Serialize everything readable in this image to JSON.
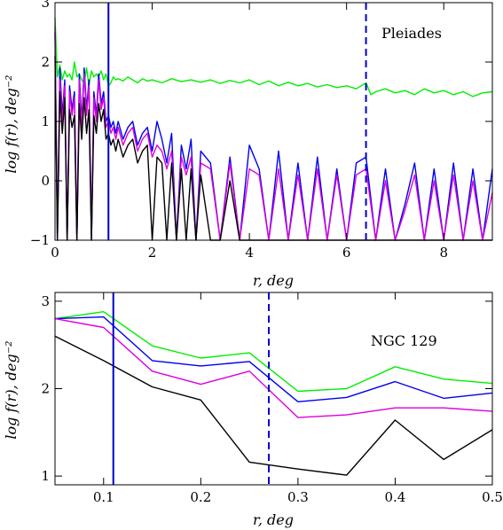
{
  "chart_data": [
    {
      "type": "line",
      "annotation": "Pleiades",
      "xlabel": "r,  deg",
      "ylabel": "log f(r),  deg⁻²",
      "xlim": [
        0,
        9
      ],
      "ylim": [
        -1,
        3
      ],
      "xticks": [
        0,
        2,
        4,
        6,
        8
      ],
      "yticks": [
        -1,
        0,
        1,
        2,
        3
      ],
      "xtick_labels": [
        "0",
        "2",
        "4",
        "6",
        "8"
      ],
      "ytick_labels": [
        "−1",
        "0",
        "1",
        "2",
        "3"
      ],
      "vlines": [
        {
          "x": 1.1,
          "style": "solid",
          "color": "#0000cc"
        },
        {
          "x": 6.4,
          "style": "dashed",
          "color": "#0000cc"
        }
      ],
      "series": [
        {
          "color": "#00ee00",
          "x": [
            0.0,
            0.05,
            0.1,
            0.15,
            0.2,
            0.25,
            0.3,
            0.35,
            0.4,
            0.45,
            0.5,
            0.55,
            0.6,
            0.65,
            0.7,
            0.75,
            0.8,
            0.85,
            0.9,
            0.95,
            1.0,
            1.05,
            1.1,
            1.15,
            1.2,
            1.25,
            1.3,
            1.4,
            1.5,
            1.6,
            1.7,
            1.8,
            1.9,
            2.0,
            2.2,
            2.4,
            2.6,
            2.8,
            3.0,
            3.2,
            3.4,
            3.6,
            3.8,
            4.0,
            4.2,
            4.4,
            4.6,
            4.8,
            5.0,
            5.2,
            5.4,
            5.6,
            5.8,
            6.0,
            6.2,
            6.4,
            6.5,
            6.6,
            6.8,
            7.0,
            7.2,
            7.4,
            7.6,
            7.8,
            8.0,
            8.2,
            8.4,
            8.6,
            8.8,
            9.0
          ],
          "values": [
            2.75,
            1.75,
            1.95,
            1.7,
            1.85,
            1.75,
            1.8,
            1.7,
            2.0,
            1.75,
            1.8,
            1.7,
            1.65,
            1.9,
            1.6,
            1.85,
            1.75,
            1.8,
            1.75,
            1.85,
            1.7,
            1.8,
            1.6,
            1.65,
            1.75,
            1.7,
            1.72,
            1.68,
            1.75,
            1.7,
            1.65,
            1.72,
            1.68,
            1.7,
            1.65,
            1.72,
            1.67,
            1.7,
            1.66,
            1.7,
            1.64,
            1.69,
            1.65,
            1.7,
            1.62,
            1.68,
            1.6,
            1.66,
            1.6,
            1.64,
            1.58,
            1.62,
            1.57,
            1.6,
            1.55,
            1.65,
            1.45,
            1.5,
            1.55,
            1.48,
            1.52,
            1.45,
            1.55,
            1.48,
            1.52,
            1.45,
            1.5,
            1.42,
            1.48,
            1.5
          ]
        },
        {
          "color": "#0000ee",
          "x": [
            0.0,
            0.05,
            0.1,
            0.15,
            0.2,
            0.25,
            0.3,
            0.35,
            0.4,
            0.45,
            0.5,
            0.55,
            0.6,
            0.65,
            0.7,
            0.75,
            0.8,
            0.85,
            0.9,
            0.95,
            1.0,
            1.05,
            1.1,
            1.15,
            1.2,
            1.25,
            1.3,
            1.4,
            1.5,
            1.6,
            1.7,
            1.8,
            1.9,
            2.0,
            2.1,
            2.2,
            2.3,
            2.4,
            2.5,
            2.6,
            2.7,
            2.8,
            2.9,
            3.0,
            3.2,
            3.4,
            3.6,
            3.8,
            4.0,
            4.2,
            4.4,
            4.6,
            4.8,
            5.0,
            5.2,
            5.4,
            5.6,
            5.8,
            6.0,
            6.2,
            6.4,
            6.6,
            6.8,
            7.0,
            7.2,
            7.4,
            7.6,
            7.8,
            8.0,
            8.2,
            8.4,
            8.6,
            8.8,
            9.0
          ],
          "values": [
            2.5,
            -1,
            1.9,
            1.1,
            1.7,
            -1,
            1.6,
            1.2,
            1.5,
            -1,
            1.8,
            1.0,
            1.9,
            1.2,
            1.7,
            -1,
            1.5,
            1.1,
            1.8,
            1.3,
            1.5,
            1.0,
            1.1,
            0.9,
            1.0,
            0.8,
            1.0,
            0.7,
            0.9,
            1.0,
            0.6,
            0.8,
            0.9,
            0.5,
            1.0,
            0.7,
            0.3,
            0.8,
            -1,
            0.6,
            0.2,
            0.7,
            -1,
            0.5,
            0.3,
            -1,
            0.4,
            -1,
            0.6,
            0.2,
            -1,
            0.5,
            -1,
            0.3,
            -1,
            0.4,
            -1,
            0.2,
            -1,
            0.3,
            0.4,
            -1,
            0.2,
            -1,
            -0.4,
            0.3,
            -1,
            0.2,
            -1,
            0.3,
            -1,
            0.2,
            -1,
            0.2
          ]
        },
        {
          "color": "#dd00dd",
          "x": [
            0.0,
            0.05,
            0.1,
            0.15,
            0.2,
            0.25,
            0.3,
            0.35,
            0.4,
            0.45,
            0.5,
            0.55,
            0.6,
            0.65,
            0.7,
            0.75,
            0.8,
            0.85,
            0.9,
            0.95,
            1.0,
            1.05,
            1.1,
            1.15,
            1.2,
            1.25,
            1.3,
            1.4,
            1.5,
            1.6,
            1.7,
            1.8,
            1.9,
            2.0,
            2.1,
            2.2,
            2.3,
            2.4,
            2.5,
            2.6,
            2.7,
            2.8,
            2.9,
            3.0,
            3.2,
            3.4,
            3.6,
            3.8,
            4.0,
            4.2,
            4.4,
            4.6,
            4.8,
            5.0,
            5.2,
            5.4,
            5.6,
            5.8,
            6.0,
            6.2,
            6.4,
            6.6,
            6.8,
            7.0,
            7.2,
            7.4,
            7.6,
            7.8,
            8.0,
            8.2,
            8.4,
            8.6,
            8.8,
            9.0
          ],
          "values": [
            2.6,
            -1,
            1.7,
            1.0,
            1.6,
            -1,
            1.5,
            1.1,
            1.4,
            -1,
            1.7,
            0.9,
            1.8,
            1.1,
            1.6,
            -1,
            1.4,
            1.0,
            1.7,
            1.2,
            1.4,
            0.9,
            1.0,
            0.8,
            0.9,
            0.7,
            0.9,
            0.6,
            0.8,
            0.9,
            0.5,
            0.7,
            0.8,
            0.4,
            0.6,
            0.5,
            0.2,
            0.5,
            -1,
            0.4,
            0.1,
            0.4,
            -1,
            0.3,
            0.2,
            -1,
            0.3,
            -1,
            0.2,
            0.1,
            -1,
            0.2,
            -1,
            0.1,
            -1,
            0.2,
            -1,
            0.1,
            -1,
            0.1,
            0.2,
            -1,
            0.0,
            -1,
            -0.5,
            0.1,
            -1,
            0.0,
            -1,
            0.1,
            -1,
            0.0,
            -1,
            -0.2
          ]
        },
        {
          "color": "#000000",
          "x": [
            0.0,
            0.05,
            0.1,
            0.15,
            0.2,
            0.25,
            0.3,
            0.35,
            0.4,
            0.45,
            0.5,
            0.55,
            0.6,
            0.65,
            0.7,
            0.75,
            0.8,
            0.85,
            0.9,
            0.95,
            1.0,
            1.05,
            1.1,
            1.15,
            1.2,
            1.25,
            1.3,
            1.4,
            1.5,
            1.6,
            1.7,
            1.8,
            1.9,
            2.0,
            2.1,
            2.2,
            2.3,
            2.4,
            2.5,
            2.6,
            2.7,
            2.8,
            2.9,
            3.0,
            3.2,
            3.4,
            3.6,
            3.8,
            4.0,
            4.2,
            4.4,
            4.6,
            4.8,
            5.0,
            5.2,
            5.4,
            5.6,
            5.8,
            6.0,
            6.2,
            6.4,
            6.6,
            6.8,
            7.0,
            7.2,
            7.4,
            7.6,
            7.8,
            8.0,
            8.2,
            8.4,
            8.6,
            8.8,
            9.0
          ],
          "values": [
            2.1,
            -1,
            1.5,
            0.8,
            1.4,
            -1,
            1.2,
            0.9,
            1.1,
            -1,
            1.3,
            0.7,
            1.4,
            0.8,
            1.2,
            -1,
            1.1,
            0.8,
            1.3,
            1.0,
            1.2,
            0.7,
            0.8,
            0.6,
            0.7,
            0.5,
            0.7,
            0.4,
            0.6,
            0.7,
            0.3,
            0.5,
            0.6,
            -1,
            0.4,
            0.3,
            -1,
            0.3,
            -1,
            0.2,
            -1,
            0.2,
            -1,
            0.1,
            -1,
            -1,
            0.0,
            -1,
            -1,
            -1,
            -1,
            -1,
            -1,
            -1,
            -1,
            -1,
            -1,
            -1,
            -1,
            -1,
            -1,
            -1,
            -1,
            -1,
            -1,
            -1,
            -1,
            -1,
            -1,
            -1,
            -1,
            -1,
            -1,
            -1
          ]
        }
      ]
    },
    {
      "type": "line",
      "annotation": "NGC 129",
      "xlabel": "r,  deg",
      "ylabel": "log f(r),  deg⁻²",
      "xlim": [
        0.05,
        0.5
      ],
      "ylim": [
        0.9,
        3.1
      ],
      "xticks": [
        0.1,
        0.2,
        0.3,
        0.4,
        0.5
      ],
      "yticks": [
        1,
        2,
        3
      ],
      "xtick_labels": [
        "0.1",
        "0.2",
        "0.3",
        "0.4",
        "0.5"
      ],
      "ytick_labels": [
        "1",
        "2",
        "3"
      ],
      "vlines": [
        {
          "x": 0.11,
          "style": "solid",
          "color": "#0000cc"
        },
        {
          "x": 0.27,
          "style": "dashed",
          "color": "#0000cc"
        }
      ],
      "series": [
        {
          "color": "#00ee00",
          "x": [
            0.05,
            0.1,
            0.15,
            0.2,
            0.25,
            0.3,
            0.35,
            0.4,
            0.45,
            0.5
          ],
          "values": [
            2.8,
            2.88,
            2.49,
            2.35,
            2.41,
            1.97,
            2.0,
            2.25,
            2.11,
            2.06
          ]
        },
        {
          "color": "#0000ee",
          "x": [
            0.05,
            0.1,
            0.15,
            0.2,
            0.25,
            0.3,
            0.35,
            0.4,
            0.45,
            0.5
          ],
          "values": [
            2.8,
            2.82,
            2.32,
            2.26,
            2.31,
            1.85,
            1.9,
            2.08,
            1.89,
            1.95
          ]
        },
        {
          "color": "#dd00dd",
          "x": [
            0.05,
            0.1,
            0.15,
            0.2,
            0.25,
            0.3,
            0.35,
            0.4,
            0.45,
            0.5
          ],
          "values": [
            2.8,
            2.7,
            2.2,
            2.05,
            2.2,
            1.67,
            1.7,
            1.78,
            1.78,
            1.74
          ]
        },
        {
          "color": "#000000",
          "x": [
            0.05,
            0.1,
            0.15,
            0.2,
            0.25,
            0.3,
            0.35,
            0.4,
            0.45,
            0.5
          ],
          "values": [
            2.6,
            2.32,
            2.02,
            1.87,
            1.16,
            1.08,
            1.01,
            1.64,
            1.19,
            1.53
          ]
        }
      ]
    }
  ]
}
